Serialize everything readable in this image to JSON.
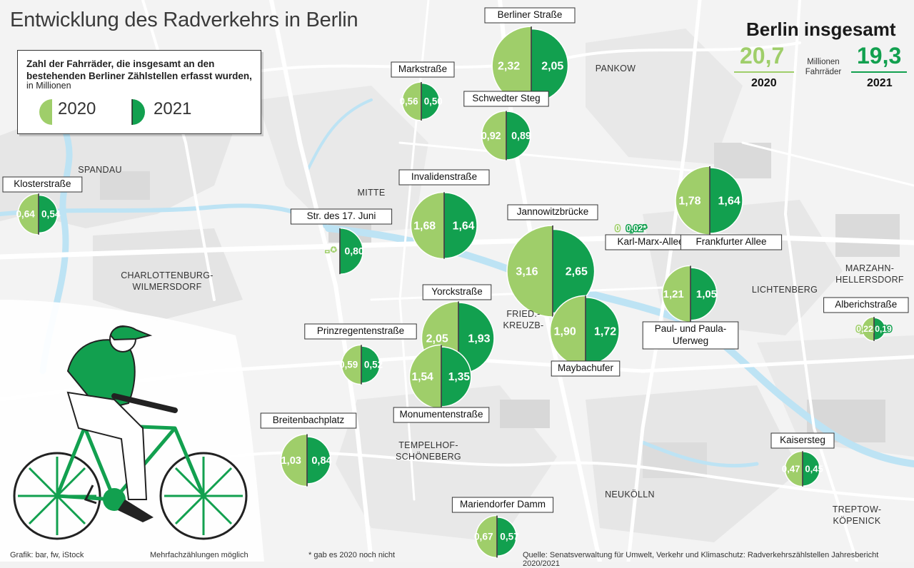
{
  "title": "Entwicklung des Radverkehrs in Berlin",
  "legend": {
    "line1": "Zahl der Fahrräder, die insgesamt an den bestehenden Berliner Zählstellen erfasst wurden,",
    "line2": "in Millionen",
    "year_a": "2020",
    "year_b": "2021"
  },
  "totals": {
    "heading": "Berlin insgesamt",
    "value_2020": "20,7",
    "value_2021": "19,3",
    "unit": "Millionen Fahrräder",
    "label_2020": "2020",
    "label_2021": "2021"
  },
  "colors": {
    "light": "#9fce6a",
    "dark": "#12a04f",
    "water": "#bde3f4",
    "park": "#d9d9d9"
  },
  "districts": [
    {
      "name": "PANKOW"
    },
    {
      "name": "SPANDAU"
    },
    {
      "name": "MITTE"
    },
    {
      "name": "CHARLOTTENBURG-\nWILMERSDORF"
    },
    {
      "name": "FRIED.-\nKREUZB-"
    },
    {
      "name": "LICHTENBERG"
    },
    {
      "name": "MARZAHN-\nHELLERSDORF"
    },
    {
      "name": "TEMPELHOF-\nSCHÖNEBERG"
    },
    {
      "name": "NEUKÖLLN"
    },
    {
      "name": "TREPTOW-\nKÖPENICK"
    }
  ],
  "stations": [
    {
      "name": "Berliner Straße",
      "v2020": "2,32",
      "v2021": "2,05",
      "n2020": 2.32,
      "n2021": 2.05
    },
    {
      "name": "Markstraße",
      "v2020": "0,56",
      "v2021": "0,50",
      "n2020": 0.56,
      "n2021": 0.5
    },
    {
      "name": "Schwedter Steg",
      "v2020": "0,92",
      "v2021": "0,89",
      "n2020": 0.92,
      "n2021": 0.89
    },
    {
      "name": "Klosterstraße",
      "v2020": "0,64",
      "v2021": "0,54",
      "n2020": 0.64,
      "n2021": 0.54
    },
    {
      "name": "Invalidenstraße",
      "v2020": "1,68",
      "v2021": "1,64",
      "n2020": 1.68,
      "n2021": 1.64
    },
    {
      "name": "Str. des 17. Juni",
      "v2020": "- *",
      "v2021": "0,80",
      "n2020": 0,
      "n2021": 0.8
    },
    {
      "name": "Jannowitzbrücke",
      "v2020": "3,16",
      "v2021": "2,65",
      "n2020": 3.16,
      "n2021": 2.65
    },
    {
      "name": "Karl-Marx-Allee",
      "v2020": "0",
      "v2021": "0,02*",
      "n2020": 0,
      "n2021": 0.02
    },
    {
      "name": "Frankfurter Allee",
      "v2020": "1,78",
      "v2021": "1,64",
      "n2020": 1.78,
      "n2021": 1.64
    },
    {
      "name": "Paul- und Paula-\nUferweg",
      "v2020": "1,21",
      "v2021": "1,05",
      "n2020": 1.21,
      "n2021": 1.05
    },
    {
      "name": "Albericherstraße",
      "v2020": "0,22",
      "v2021": "0,19",
      "n2020": 0.22,
      "n2021": 0.19
    },
    {
      "name": "Yorckstraße",
      "v2020": "2,05",
      "v2021": "1,93",
      "n2020": 2.05,
      "n2021": 1.93
    },
    {
      "name": "Maybachufer",
      "v2020": "1,90",
      "v2021": "1,72",
      "n2020": 1.9,
      "n2021": 1.72
    },
    {
      "name": "Prinzregentenstraße",
      "v2020": "0,59",
      "v2021": "0,52",
      "n2020": 0.59,
      "n2021": 0.52
    },
    {
      "name": "Monumentenstraße",
      "v2020": "1,54",
      "v2021": "1,35",
      "n2020": 1.54,
      "n2021": 1.35
    },
    {
      "name": "Breitenbachplatz",
      "v2020": "1,03",
      "v2021": "0,84",
      "n2020": 1.03,
      "n2021": 0.84
    },
    {
      "name": "Kaisersteg",
      "v2020": "0,47",
      "v2021": "0,45",
      "n2020": 0.47,
      "n2021": 0.45
    },
    {
      "name": "Mariendorfer Damm",
      "v2020": "0,67",
      "v2021": "0,57",
      "n2020": 0.67,
      "n2021": 0.57
    }
  ],
  "footer": {
    "credit": "Grafik: bar, fw, iStock",
    "multi": "Mehrfachzählungen möglich",
    "note": "* gab es 2020 noch nicht",
    "source": "Quelle: Senatsverwaltung für Umwelt, Verkehr und Klimaschutz: Radverkehrszählstellen Jahresbericht 2020/2021"
  }
}
